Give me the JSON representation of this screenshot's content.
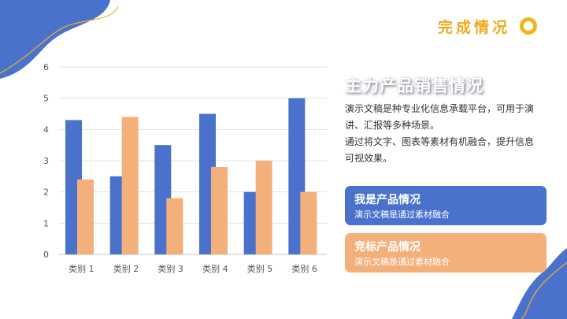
{
  "heading": "完成情况",
  "side": {
    "title": "主力产品销售情况",
    "desc_line1": "演示文稿是种专业化信息承载平台，可用于演讲、汇报等多种场景。",
    "desc_line2": "通过将文字、图表等素材有机融合，提升信息可视效果。"
  },
  "cards": [
    {
      "title": "我是产品情况",
      "text": "演示文稿是通过素材融合"
    },
    {
      "title": "竞标产品情况",
      "text": "演示文稿是通过素材融合"
    }
  ],
  "colors": {
    "blue": "#4a72cc",
    "orange": "#f4b07b",
    "accent": "#f2a91a"
  },
  "chart_data": {
    "type": "bar",
    "categories": [
      "类别 1",
      "类别 2",
      "类别 3",
      "类别 4",
      "类别 5",
      "类别 6"
    ],
    "series": [
      {
        "values": [
          4.3,
          2.5,
          3.5,
          4.5,
          2.0,
          5.0
        ],
        "color": "#4a72cc"
      },
      {
        "values": [
          2.4,
          4.4,
          1.8,
          2.8,
          3.0,
          2.0
        ],
        "color": "#f4b07b"
      }
    ],
    "yticks": [
      "0",
      "1",
      "2",
      "3",
      "4",
      "5",
      "6"
    ],
    "ylim": [
      0,
      6
    ],
    "grid": true,
    "legend": "none"
  }
}
